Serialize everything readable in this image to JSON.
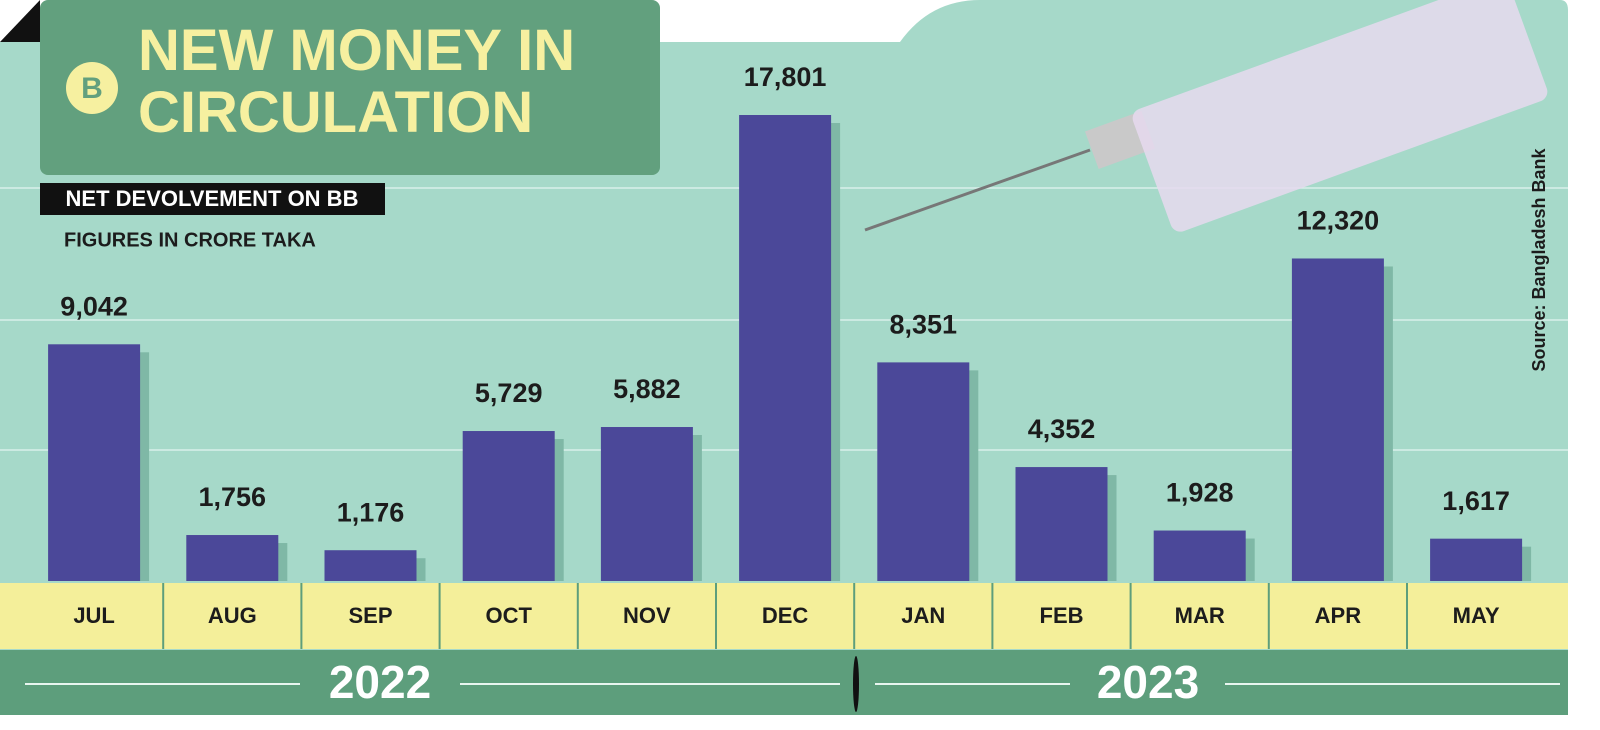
{
  "chart_data": {
    "type": "bar",
    "title": "NEW MONEY IN CIRCULATION",
    "subtitle": "NET DEVOLVEMENT ON BB",
    "note": "FIGURES IN CRORE TAKA",
    "source": "Source: Bangladesh Bank",
    "year_labels": [
      "2022",
      "2023"
    ],
    "categories": [
      "JUL",
      "AUG",
      "SEP",
      "OCT",
      "NOV",
      "DEC",
      "JAN",
      "FEB",
      "MAR",
      "APR",
      "MAY"
    ],
    "values": [
      9042,
      1756,
      1176,
      5729,
      5882,
      17801,
      8351,
      4352,
      1928,
      12320,
      1617
    ],
    "value_labels": [
      "9,042",
      "1,756",
      "1,176",
      "5,729",
      "5,882",
      "17,801",
      "8,351",
      "4,352",
      "1,928",
      "12,320",
      "1,617"
    ],
    "color": "#4b4899"
  }
}
